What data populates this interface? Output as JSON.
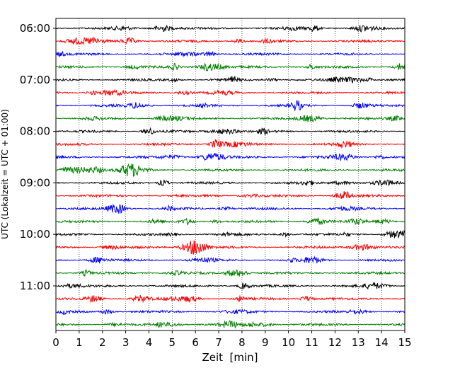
{
  "chart_data": {
    "type": "line",
    "title": "",
    "xlabel": "Zeit  [min]",
    "ylabel": "UTC (Lokalzeit = UTC + 01:00)",
    "xlim": [
      0,
      15
    ],
    "x_ticks": [
      0,
      1,
      2,
      3,
      4,
      5,
      6,
      7,
      8,
      9,
      10,
      11,
      12,
      13,
      14,
      15
    ],
    "x_tick_labels": [
      "0",
      "1",
      "2",
      "3",
      "4",
      "5",
      "6",
      "7",
      "8",
      "9",
      "10",
      "11",
      "12",
      "13",
      "14",
      "15"
    ],
    "y_tick_labels": [
      "06:00",
      "07:00",
      "08:00",
      "09:00",
      "10:00",
      "11:00"
    ],
    "y_tick_trace_index": [
      0,
      4,
      8,
      12,
      16,
      20
    ],
    "trace_minutes": 15,
    "trace_start_times": [
      "06:00",
      "06:15",
      "06:30",
      "06:45",
      "07:00",
      "07:15",
      "07:30",
      "07:45",
      "08:00",
      "08:15",
      "08:30",
      "08:45",
      "09:00",
      "09:15",
      "09:30",
      "09:45",
      "10:00",
      "10:15",
      "10:30",
      "10:45",
      "11:00",
      "11:15",
      "11:30",
      "11:45"
    ],
    "trace_colors": [
      "#000000",
      "#ff0000",
      "#0000ff",
      "#008000"
    ],
    "grid": "vertical dotted at each minute",
    "legend": "none"
  }
}
